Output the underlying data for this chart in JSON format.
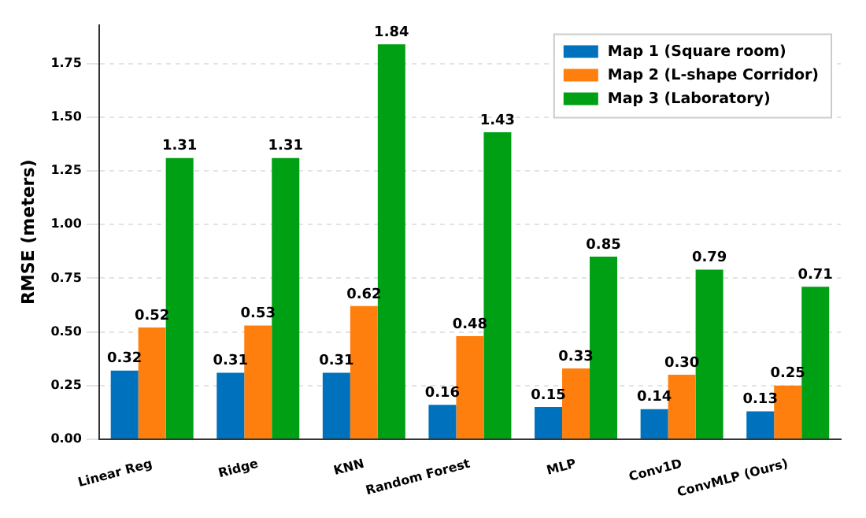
{
  "chart_data": {
    "type": "bar",
    "ylabel": "RMSE (meters)",
    "categories": [
      "Linear Reg",
      "Ridge",
      "KNN",
      "Random Forest",
      "MLP",
      "Conv1D",
      "ConvMLP (Ours)"
    ],
    "series": [
      {
        "name": "Map 1 (Square room)",
        "color": "#0072bd",
        "values": [
          0.32,
          0.31,
          0.31,
          0.16,
          0.15,
          0.14,
          0.13
        ],
        "value_labels": [
          "0.32",
          "0.31",
          "0.31",
          "0.16",
          "0.15",
          "0.14",
          "0.13"
        ]
      },
      {
        "name": "Map 2 (L-shape Corridor)",
        "color": "#ff7f0e",
        "values": [
          0.52,
          0.53,
          0.62,
          0.48,
          0.33,
          0.3,
          0.25
        ],
        "value_labels": [
          "0.52",
          "0.53",
          "0.62",
          "0.48",
          "0.33",
          "0.30",
          "0.25"
        ]
      },
      {
        "name": "Map 3 (Laboratory)",
        "color": "#00a014",
        "values": [
          1.31,
          1.31,
          1.84,
          1.43,
          0.85,
          0.79,
          0.71
        ],
        "value_labels": [
          "1.31",
          "1.31",
          "1.84",
          "1.43",
          "0.85",
          "0.79",
          "0.71"
        ]
      }
    ],
    "ylim": [
      0,
      1.93
    ],
    "yticks": [
      {
        "value": 0,
        "label": "0.00"
      },
      {
        "value": 0.25,
        "label": "0.25"
      },
      {
        "value": 0.5,
        "label": "0.50"
      },
      {
        "value": 0.75,
        "label": "0.75"
      },
      {
        "value": 1,
        "label": "1.00"
      },
      {
        "value": 1.25,
        "label": "1.25"
      },
      {
        "value": 1.5,
        "label": "1.50"
      },
      {
        "value": 1.75,
        "label": "1.75"
      }
    ],
    "grid": "y",
    "legend": "top right"
  }
}
